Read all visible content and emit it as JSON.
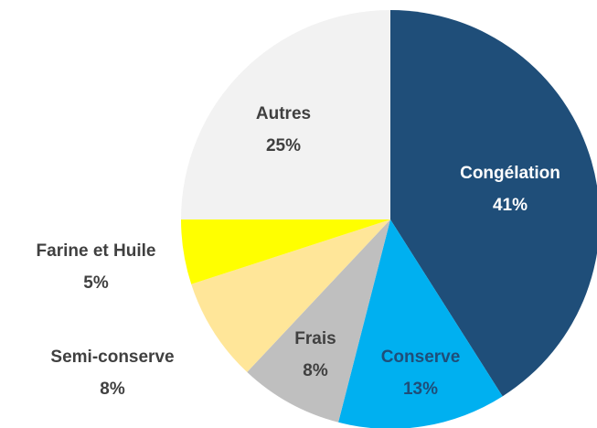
{
  "chart_data": {
    "type": "pie",
    "categories": [
      "Congélation",
      "Conserve",
      "Frais",
      "Semi-conserve",
      "Farine et Huile",
      "Autres"
    ],
    "values": [
      41,
      13,
      8,
      8,
      5,
      25
    ],
    "value_labels": [
      "41%",
      "13%",
      "8%",
      "8%",
      "5%",
      "25%"
    ],
    "colors": [
      "#1f4e79",
      "#00b0f0",
      "#bfbfbf",
      "#ffe699",
      "#ffff00",
      "#f2f2f2"
    ]
  }
}
